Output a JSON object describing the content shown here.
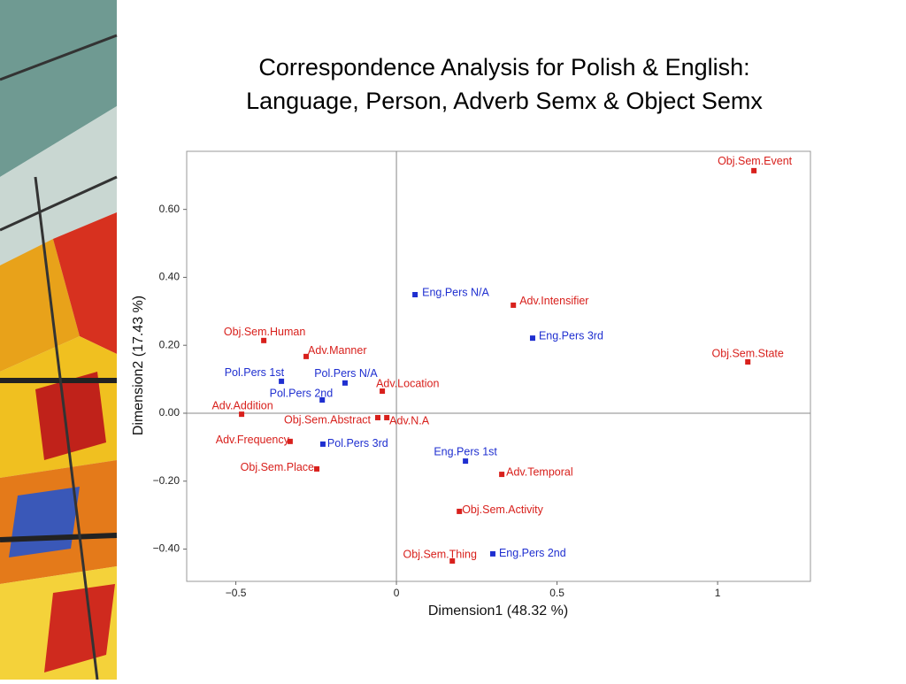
{
  "chart_data": {
    "type": "scatter",
    "title": [
      "Correspondence Analysis for Polish & English:",
      "Language, Person, Adverb Semx & Object Semx"
    ],
    "x_label": "Dimension1 (48.32 %)",
    "y_label": "Dimension2 (17.43 %)",
    "xlim": [
      -0.653,
      1.289
    ],
    "ylim": [
      -0.495,
      0.771
    ],
    "xticks": [
      {
        "value": -0.5,
        "label": "−0.5"
      },
      0,
      0.5,
      1
    ],
    "yticks": [
      {
        "value": -0.4,
        "label": "−0.40"
      },
      {
        "value": -0.2,
        "label": "−0.20"
      },
      {
        "value": 0,
        "label": "0.00"
      },
      {
        "value": 0.2,
        "label": "0.20"
      },
      {
        "value": 0.4,
        "label": "0.40"
      },
      {
        "value": 0.6,
        "label": "0.60"
      }
    ],
    "series": [
      {
        "color": "#1f2fd0",
        "labels": [
          "Eng.Pers N/A",
          "Eng.Pers 3rd",
          "Pol.Pers 1st",
          "Pol.Pers N/A",
          "Pol.Pers 2nd",
          "Pol.Pers 3rd",
          "Eng.Pers 1st",
          "Eng.Pers 2nd"
        ],
        "x": [
          0.058,
          0.424,
          -0.358,
          -0.16,
          -0.231,
          -0.229,
          0.215,
          0.3
        ],
        "values": [
          0.349,
          0.221,
          0.094,
          0.089,
          0.039,
          -0.091,
          -0.141,
          -0.414
        ]
      },
      {
        "color": "#d8201c",
        "labels": [
          "Obj.Sem.Event",
          "Adv.Intensifier",
          "Obj.Sem.Human",
          "Adv.Manner",
          "Obj.Sem.State",
          "Adv.Location",
          "Adv.Addition",
          "Obj.Sem.Abstract",
          "Adv.N.A",
          "Adv.Frequency",
          "Obj.Sem.Place",
          "Adv.Temporal",
          "Obj.Sem.Activity",
          "Obj.Sem.Thing"
        ],
        "x": [
          1.113,
          0.364,
          -0.413,
          -0.281,
          1.094,
          -0.044,
          -0.482,
          -0.058,
          -0.03,
          -0.331,
          -0.248,
          0.328,
          0.196,
          0.174
        ],
        "values": [
          0.714,
          0.318,
          0.214,
          0.167,
          0.151,
          0.065,
          -0.003,
          -0.013,
          -0.013,
          -0.083,
          -0.164,
          -0.18,
          -0.289,
          -0.435
        ]
      }
    ]
  }
}
